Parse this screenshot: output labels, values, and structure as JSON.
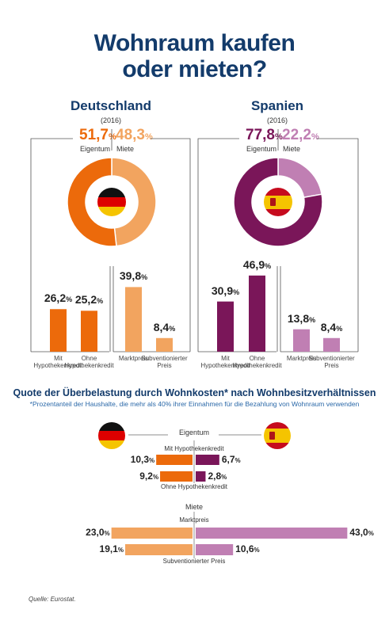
{
  "title_line1": "Wohnraum kaufen",
  "title_line2": "oder mieten?",
  "colors": {
    "navy": "#133b6b",
    "orange": "#ec6a0b",
    "light_orange": "#f2a45f",
    "purple": "#7a1659",
    "light_purple": "#c07fb3",
    "note_blue": "#2a68a8"
  },
  "countries": {
    "de": {
      "name": "Deutschland",
      "year": "(2016)",
      "flag_icon": "germany-flag-icon"
    },
    "es": {
      "name": "Spanien",
      "year": "(2016)",
      "flag_icon": "spain-flag-icon"
    }
  },
  "donut_labels": {
    "owner": "Eigentum",
    "rent": "Miete"
  },
  "bar_labels": {
    "mit": [
      "Mit",
      "Hypothekenkredit"
    ],
    "ohne": [
      "Ohne",
      "Hypothekenkredit"
    ],
    "markt": [
      "Marktpreis"
    ],
    "subv": [
      "Subventionierter",
      "Preis"
    ]
  },
  "section2": {
    "title": "Quote der Überbelastung durch Wohnkosten* nach Wohnbesitzverhältnissen",
    "note": "*Prozentanteil der Haushalte, die mehr als 40% ihrer Einnahmen für die Bezahlung von Wohnraum verwenden",
    "eigentum": "Eigentum",
    "mit": "Mit Hypothekenkredit",
    "ohne": "Ohne Hypothekenkredit",
    "miete": "Miete",
    "markt": "Marktpreis",
    "subv": "Subventionierter Preis"
  },
  "source": "Quelle: Eurostat.",
  "chart_data": [
    {
      "type": "pie",
      "title": "Deutschland",
      "subtitle": "(2016)",
      "categories": [
        "Eigentum",
        "Miete"
      ],
      "values": [
        51.7,
        48.3
      ],
      "unit": "%",
      "colors": [
        "#ec6a0b",
        "#f2a45f"
      ]
    },
    {
      "type": "pie",
      "title": "Spanien",
      "subtitle": "(2016)",
      "categories": [
        "Eigentum",
        "Miete"
      ],
      "values": [
        77.8,
        22.2
      ],
      "unit": "%",
      "colors": [
        "#7a1659",
        "#c07fb3"
      ]
    },
    {
      "type": "bar",
      "title": "Deutschland",
      "categories": [
        "Mit Hypothekenkredit",
        "Ohne Hypothekenkredit",
        "Marktpreis",
        "Subventionierter Preis"
      ],
      "values": [
        26.2,
        25.2,
        39.8,
        8.4
      ],
      "unit": "%",
      "colors": [
        "#ec6a0b",
        "#ec6a0b",
        "#f2a45f",
        "#f2a45f"
      ],
      "ylim": [
        0,
        50
      ]
    },
    {
      "type": "bar",
      "title": "Spanien",
      "categories": [
        "Mit Hypothekenkredit",
        "Ohne Hypothekenkredit",
        "Marktpreis",
        "Subventionierter Preis"
      ],
      "values": [
        30.9,
        46.9,
        13.8,
        8.4
      ],
      "unit": "%",
      "colors": [
        "#7a1659",
        "#7a1659",
        "#c07fb3",
        "#c07fb3"
      ],
      "ylim": [
        0,
        50
      ]
    },
    {
      "type": "bar",
      "orientation": "horizontal-diverging",
      "title": "Quote der Überbelastung durch Wohnkosten* nach Wohnbesitzverhältnissen",
      "categories": [
        "Mit Hypothekenkredit",
        "Ohne Hypothekenkredit",
        "Marktpreis",
        "Subventionierter Preis"
      ],
      "groups": [
        "Eigentum",
        "Eigentum",
        "Miete",
        "Miete"
      ],
      "series": [
        {
          "name": "Deutschland",
          "values": [
            10.3,
            9.2,
            23.0,
            19.1
          ]
        },
        {
          "name": "Spanien",
          "values": [
            6.7,
            2.8,
            43.0,
            10.6
          ]
        }
      ],
      "unit": "%"
    }
  ]
}
